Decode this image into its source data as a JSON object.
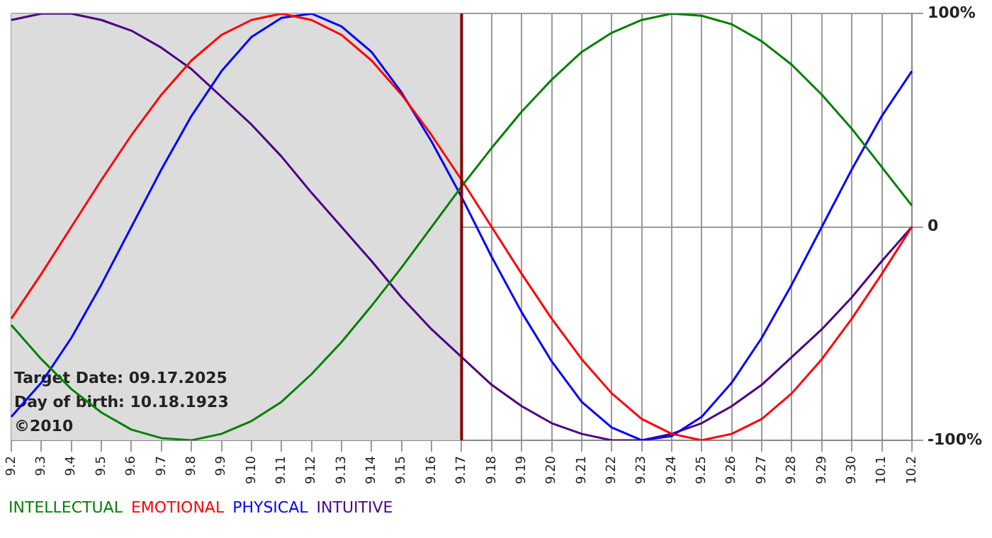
{
  "chart_data": {
    "type": "line",
    "categories": [
      "9.2",
      "9.3",
      "9.4",
      "9.5",
      "9.6",
      "9.7",
      "9.8",
      "9.9",
      "9.10",
      "9.11",
      "9.12",
      "9.13",
      "9.14",
      "9.15",
      "9.16",
      "9.17",
      "9.18",
      "9.19",
      "9.20",
      "9.21",
      "9.22",
      "9.23",
      "9.24",
      "9.25",
      "9.26",
      "9.27",
      "9.28",
      "9.29",
      "9.30",
      "10.1",
      "10.2"
    ],
    "series": [
      {
        "name": "INTELLECTUAL",
        "color": "#008000",
        "values": [
          -46,
          -62,
          -76,
          -87,
          -95,
          -99,
          -100,
          -97,
          -91,
          -82,
          -69,
          -54,
          -37,
          -19,
          0,
          19,
          37,
          54,
          69,
          82,
          91,
          97,
          100,
          99,
          95,
          87,
          76,
          62,
          46,
          28,
          10
        ]
      },
      {
        "name": "EMOTIONAL",
        "color": "#ff0000",
        "values": [
          -43,
          -22,
          0,
          22,
          43,
          62,
          78,
          90,
          97,
          100,
          97,
          90,
          78,
          62,
          43,
          22,
          0,
          -22,
          -43,
          -62,
          -78,
          -90,
          -97,
          -100,
          -97,
          -90,
          -78,
          -62,
          -43,
          -22,
          0
        ]
      },
      {
        "name": "PHYSICAL",
        "color": "#0000ff",
        "values": [
          -89,
          -73,
          -52,
          -27,
          0,
          27,
          52,
          73,
          89,
          98,
          100,
          94,
          82,
          63,
          40,
          14,
          -14,
          -40,
          -63,
          -82,
          -94,
          -100,
          -98,
          -89,
          -73,
          -52,
          -27,
          0,
          27,
          52,
          73
        ]
      },
      {
        "name": "INTUITIVE",
        "color": "#4b0082",
        "values": [
          97,
          100,
          100,
          97,
          92,
          84,
          74,
          61,
          48,
          33,
          16,
          0,
          -16,
          -33,
          -48,
          -61,
          -74,
          -84,
          -92,
          -97,
          -100,
          -100,
          -97,
          -92,
          -84,
          -74,
          -61,
          -48,
          -33,
          -16,
          0
        ]
      }
    ],
    "ylim": [
      -100,
      100
    ],
    "yticks": [
      {
        "value": -100,
        "label": "-100%"
      },
      {
        "value": 0,
        "label": "0"
      },
      {
        "value": 100,
        "label": "100%"
      }
    ],
    "grid": true,
    "legend": "bottom",
    "marker": "none",
    "line_style": "solid",
    "ref_lines": [
      {
        "axis": "x",
        "value": "9.17",
        "color": "#800000"
      }
    ],
    "bands": [
      {
        "axis": "x",
        "from": "9.2",
        "to": "9.17",
        "color": "#dcdcdc"
      }
    ],
    "annotations": [
      "Target Date: 09.17.2025",
      "Day of birth: 10.18.1923",
      "©2010"
    ]
  }
}
